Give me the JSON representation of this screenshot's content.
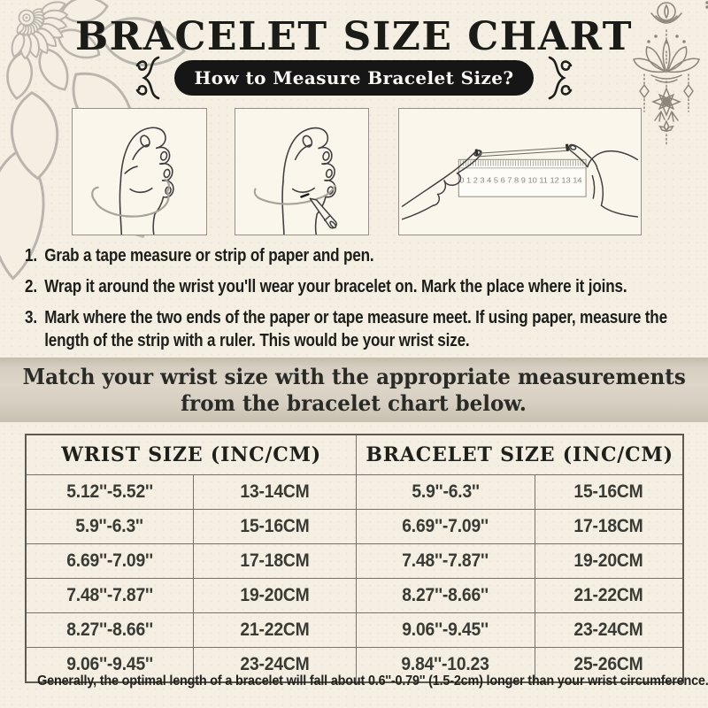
{
  "header": {
    "title": "BRACELET SIZE CHART",
    "badge": "How to Measure Bracelet Size?"
  },
  "figures": [
    {
      "name": "wrap-tape-around-wrist"
    },
    {
      "name": "mark-where-it-joins"
    },
    {
      "name": "measure-strip-with-ruler",
      "ruler_numbers": "0 1 2 3 4 5 6 7 8 9 10 11 12 13 14"
    }
  ],
  "steps": [
    {
      "num": "1.",
      "text": "Grab a tape measure or strip of paper and pen."
    },
    {
      "num": "2.",
      "text": "Wrap it around the wrist you'll wear your bracelet on. Mark the place where it joins."
    },
    {
      "num": "3.",
      "text": "Mark where the two ends of the paper or tape measure meet. If using paper, measure the length of the strip with a ruler. This would be your wrist size."
    }
  ],
  "banner": {
    "line1": "Match your wrist size with the appropriate measurements",
    "line2": "from the bracelet chart below."
  },
  "table": {
    "headers": [
      "WRIST SIZE (INC/CM)",
      "BRACELET SIZE (INC/CM)"
    ],
    "rows": [
      [
        "5.12''-5.52''",
        "13-14CM",
        "5.9''-6.3''",
        "15-16CM"
      ],
      [
        "5.9''-6.3''",
        "15-16CM",
        "6.69''-7.09''",
        "17-18CM"
      ],
      [
        "6.69''-7.09''",
        "17-18CM",
        "7.48''-7.87''",
        "19-20CM"
      ],
      [
        "7.48''-7.87''",
        "19-20CM",
        "8.27''-8.66''",
        "21-22CM"
      ],
      [
        "8.27''-8.66''",
        "21-22CM",
        "9.06''-9.45''",
        "23-24CM"
      ],
      [
        "9.06''-9.45''",
        "23-24CM",
        "9.84''-10.23",
        "25-26CM"
      ]
    ]
  },
  "footer": {
    "note": "Generally, the optimal length of a bracelet will fall about 0.6''-0.79'' (1.5-2cm) longer than your wrist circumference."
  },
  "icons": {
    "mandala-flower-icon": "quarter lotus mandala corner decoration",
    "lotus-ornament-icon": "hanging boho lotus ornament with crescent and star",
    "squiggle-bracket-left-icon": "decorative flourish bracket",
    "squiggle-bracket-right-icon": "decorative flourish bracket mirrored",
    "hand-with-tape-illustration": "fist with measuring strip wrapped around wrist",
    "hand-with-pen-illustration": "fist with pen marking the strip on wrist",
    "hands-ruler-illustration": "two hands measuring paper strip against ruler"
  },
  "colors": {
    "background": "#f4efe2",
    "badge_bg": "#161616",
    "badge_text": "#faf8f2",
    "banner_bg": "#d6cfc1",
    "table_border": "#6f6b63",
    "text": "#22221e",
    "line_art": "#3f3f3f",
    "deco_gray": "#8d8579",
    "mandala_gray": "#bab6ad"
  }
}
